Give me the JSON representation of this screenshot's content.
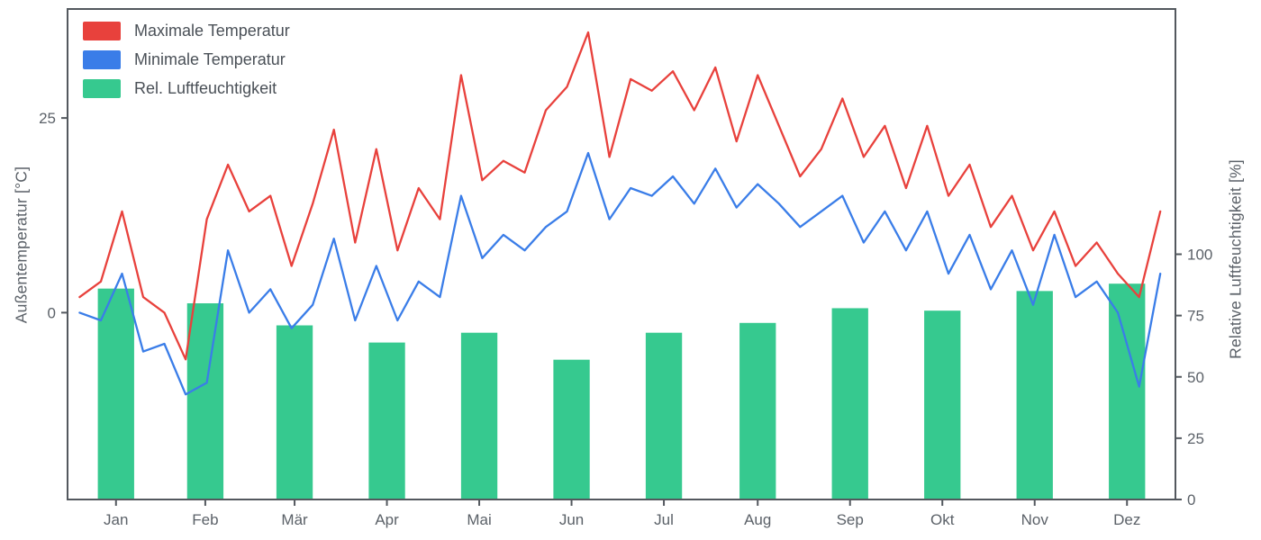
{
  "chart_data": {
    "type": "line+bar",
    "title": "",
    "x_axis": {
      "tick_labels": [
        "Jan",
        "Feb",
        "Mär",
        "Apr",
        "Mai",
        "Jun",
        "Jul",
        "Aug",
        "Sep",
        "Okt",
        "Nov",
        "Dez"
      ],
      "tick_positions_day": [
        16,
        45.5,
        75,
        105.5,
        136,
        166.5,
        197,
        228,
        258.5,
        289,
        319.5,
        350
      ],
      "range_days": [
        0,
        366
      ]
    },
    "left_axis": {
      "label": "Außentemperatur [°C]",
      "ticks": [
        0,
        25
      ],
      "range": [
        -24,
        39
      ]
    },
    "right_axis": {
      "label": "Relative Luftfeuchtigkeit [%]",
      "ticks": [
        0,
        25,
        50,
        75,
        100
      ],
      "range": [
        0,
        200
      ]
    },
    "sample_days": [
      4,
      11,
      18,
      25,
      32,
      39,
      46,
      53,
      60,
      67,
      74,
      81,
      88,
      95,
      102,
      109,
      116,
      123,
      130,
      137,
      144,
      151,
      158,
      165,
      172,
      179,
      186,
      193,
      200,
      207,
      214,
      221,
      228,
      235,
      242,
      249,
      256,
      263,
      270,
      277,
      284,
      291,
      298,
      305,
      312,
      319,
      326,
      333,
      340,
      347,
      354,
      361
    ],
    "series": [
      {
        "name": "Maximale Temperatur",
        "type": "line",
        "axis": "left",
        "color": "#e8413c",
        "values": [
          2,
          4,
          13,
          2,
          0,
          -6,
          12,
          19,
          13,
          15,
          6,
          14,
          23.5,
          9,
          21,
          8,
          16,
          12,
          30.5,
          17,
          19.5,
          18,
          26,
          29,
          36,
          20,
          30,
          28.5,
          31,
          26,
          31.5,
          22,
          30.5,
          24,
          17.5,
          21,
          27.5,
          20,
          24,
          16,
          24,
          15,
          19,
          11,
          15,
          8,
          13,
          6,
          9,
          5,
          2,
          13
        ]
      },
      {
        "name": "Minimale Temperatur",
        "type": "line",
        "axis": "left",
        "color": "#3a7de8",
        "values": [
          0,
          -1,
          5,
          -5,
          -4,
          -10.5,
          -9,
          8,
          0,
          3,
          -2,
          1,
          9.5,
          -1,
          6,
          -1,
          4,
          2,
          15,
          7,
          10,
          8,
          11,
          13,
          20.5,
          12,
          16,
          15,
          17.5,
          14,
          18.5,
          13.5,
          16.5,
          14,
          11,
          13,
          15,
          9,
          13,
          8,
          13,
          5,
          10,
          3,
          8,
          1,
          10,
          2,
          4,
          0,
          -9.5,
          5
        ]
      },
      {
        "name": "Rel. Luftfeuchtigkeit",
        "type": "bar",
        "axis": "right",
        "color": "#36c98f",
        "bar_width_days": 12,
        "month_values": [
          86,
          80,
          71,
          64,
          68,
          57,
          68,
          72,
          78,
          77,
          85,
          88
        ]
      }
    ],
    "legend": {
      "position": "top-left",
      "entries": [
        "Maximale Temperatur",
        "Minimale Temperatur",
        "Rel. Luftfeuchtigkeit"
      ]
    },
    "style": {
      "spine_color": "#53585e",
      "tick_color": "#53585e",
      "text_color": "#5b6168",
      "background": "#ffffff"
    }
  }
}
